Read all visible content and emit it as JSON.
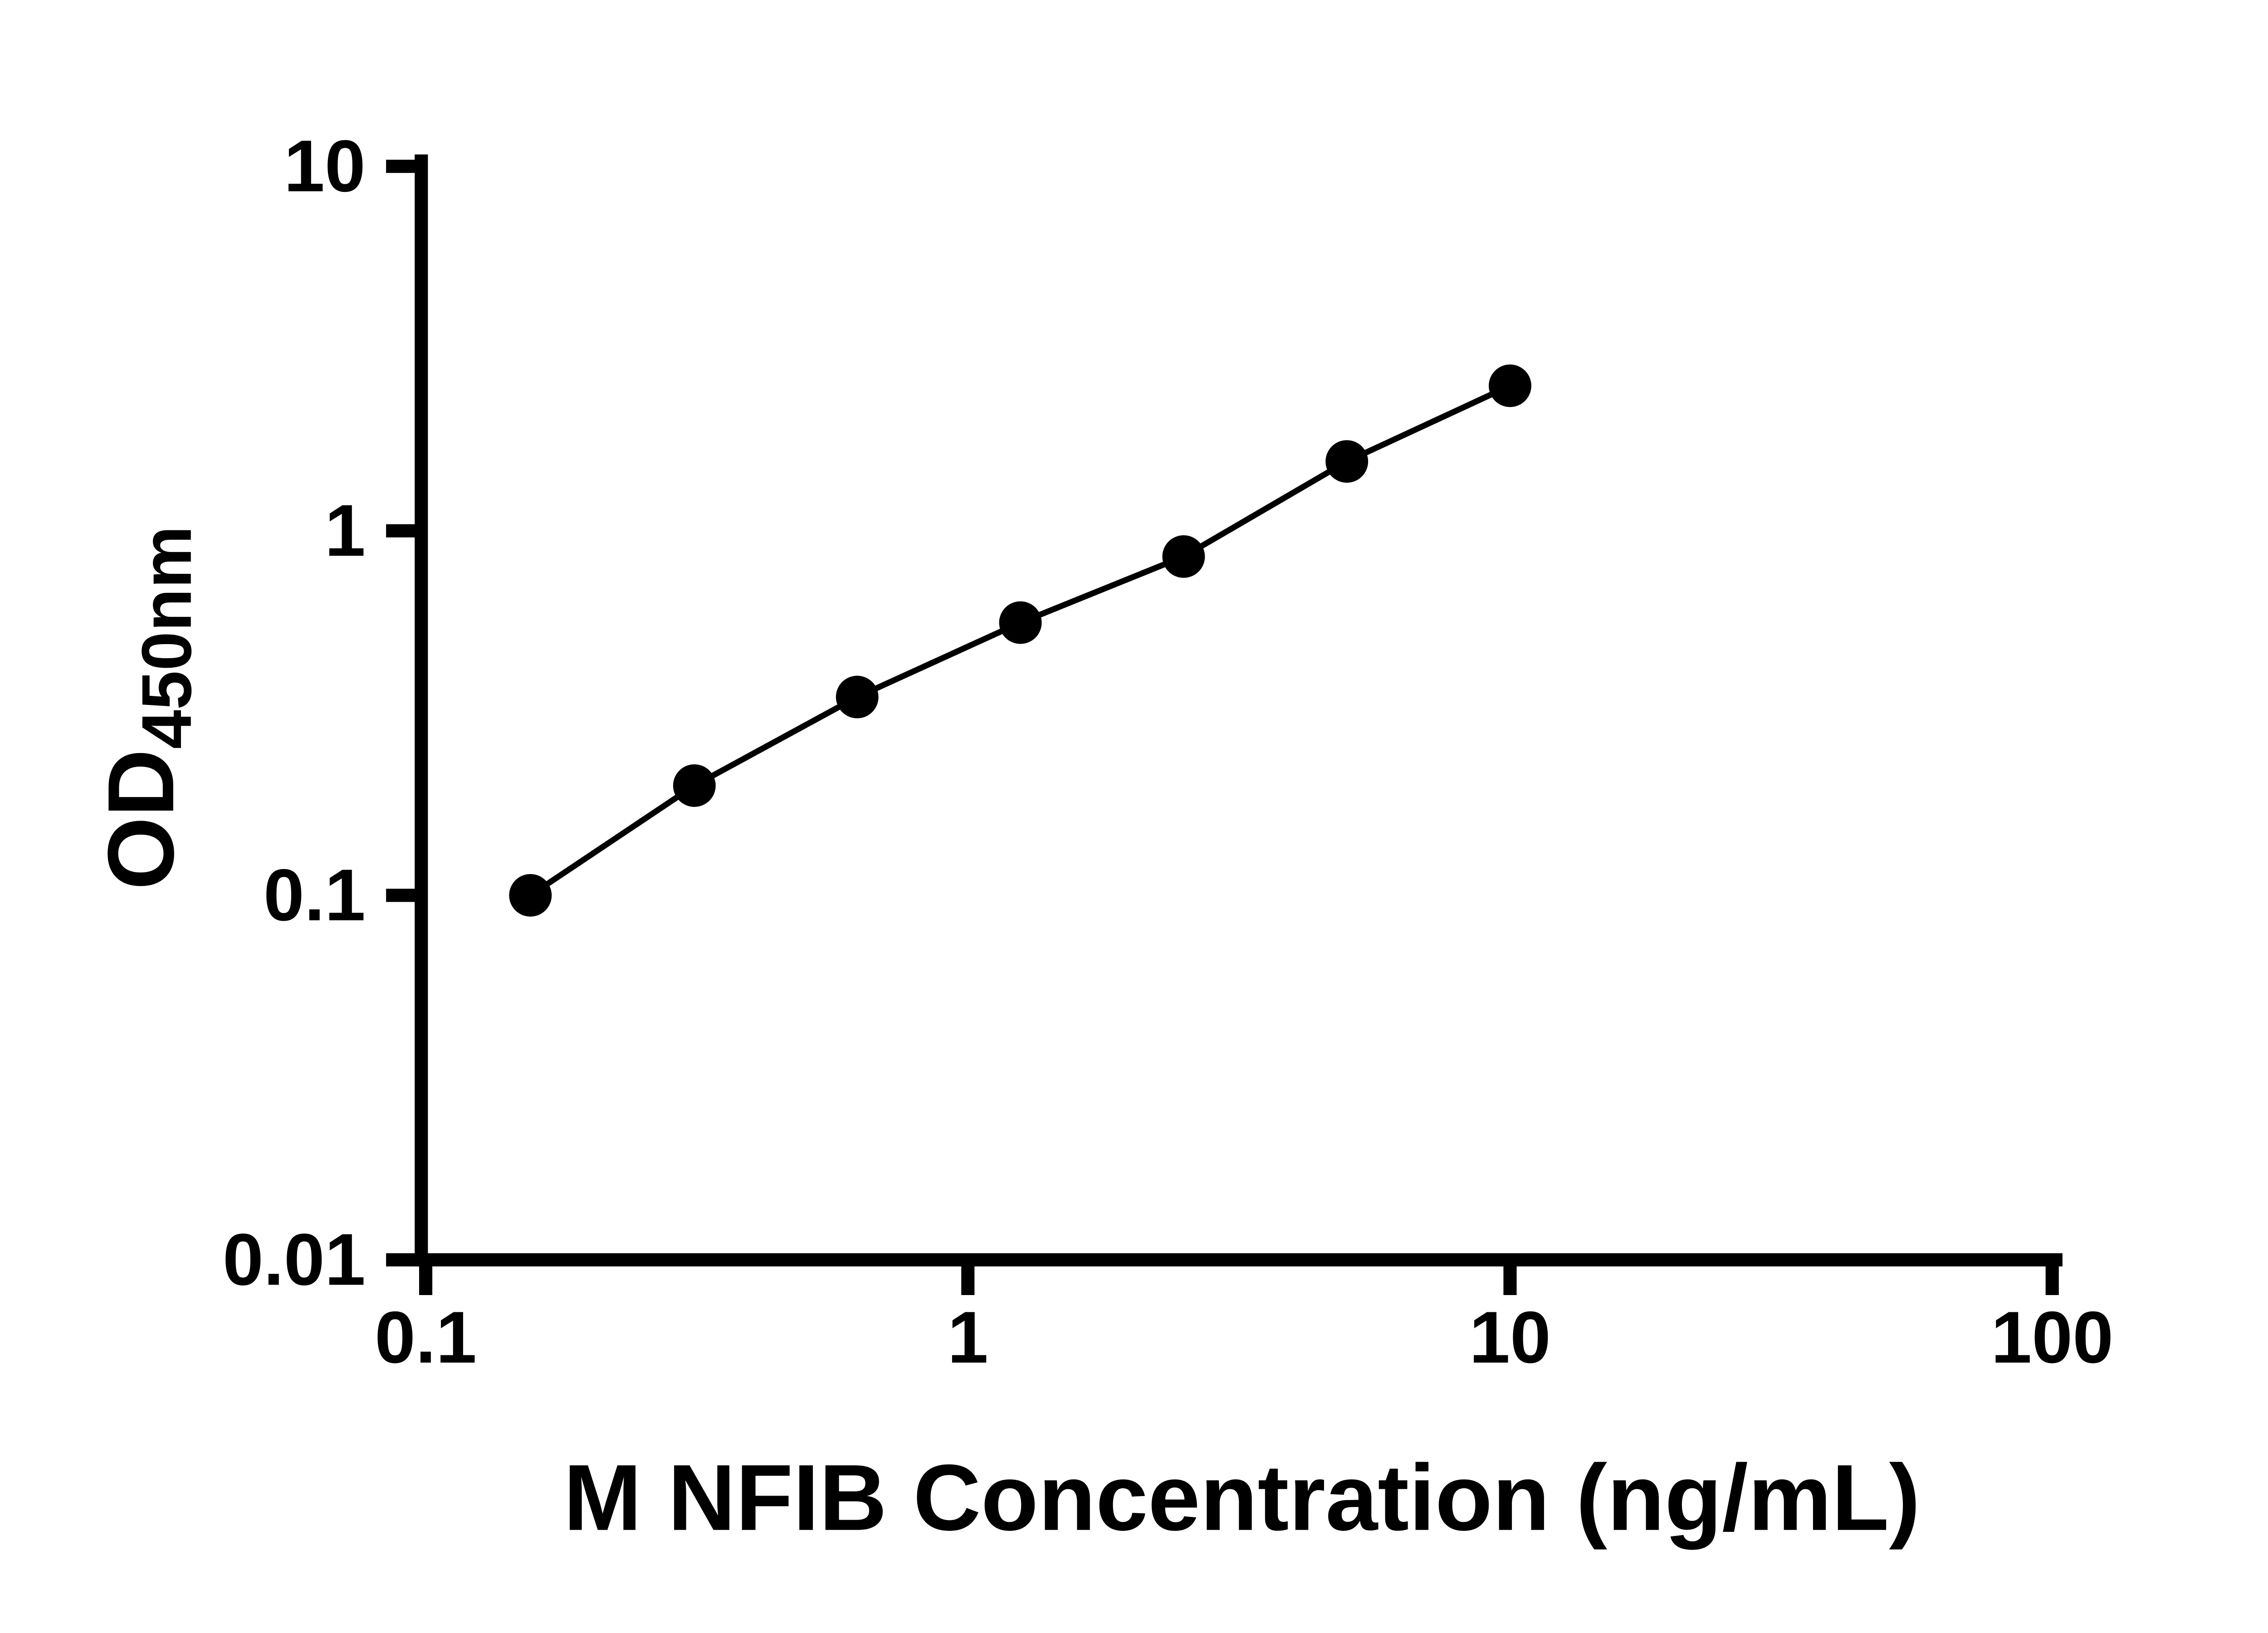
{
  "chart_data": {
    "type": "scatter",
    "title": "",
    "xlabel": "M NFIB Concentration (ng/mL)",
    "ylabel": "OD450nm",
    "ylabel_main": "OD",
    "ylabel_sub": "450nm",
    "x_scale": "log",
    "y_scale": "log",
    "xlim": [
      0.1,
      100
    ],
    "ylim": [
      0.01,
      10
    ],
    "x_tick_labels": [
      "0.1",
      "1",
      "10",
      "100"
    ],
    "y_tick_labels": [
      "0.01",
      "0.1",
      "1",
      "10"
    ],
    "grid": false,
    "legend": "none",
    "marker": "filled-circle",
    "line_style": "solid",
    "colors": {
      "axis": "#000000",
      "marker": "#000000",
      "line": "#000000",
      "text": "#000000",
      "background": "#ffffff"
    },
    "x": [
      0.156,
      0.313,
      0.625,
      1.25,
      2.5,
      5,
      10
    ],
    "y": [
      0.1,
      0.2,
      0.35,
      0.56,
      0.85,
      1.55,
      2.5
    ]
  }
}
